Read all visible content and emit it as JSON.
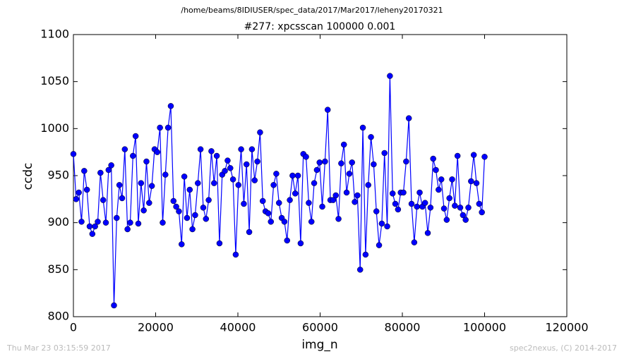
{
  "chart_data": {
    "type": "line",
    "suptitle": "/home/beams/8IDIUSER/spec_data/2017/Mar2017/leheny20170321",
    "title": "#277: xpcsscan 100000 0.001",
    "xlabel": "img_n",
    "ylabel": "ccdc",
    "footer_left": "Thu Mar 23 03:15:59 2017",
    "footer_right": "spec2nexus, (C) 2014-2017",
    "xlim": [
      0,
      120000
    ],
    "xticks": [
      0,
      20000,
      40000,
      60000,
      80000,
      100000,
      120000
    ],
    "ylim": [
      800,
      1100
    ],
    "yticks": [
      800,
      850,
      900,
      950,
      1000,
      1050,
      1100
    ],
    "grid": false,
    "series": [
      {
        "color": "#0000ff",
        "x": [
          0,
          658,
          1316,
          1974,
          2632,
          3289,
          3947,
          4605,
          5263,
          5921,
          6579,
          7237,
          7895,
          8553,
          9211,
          9868,
          10526,
          11184,
          11842,
          12500,
          13158,
          13816,
          14474,
          15132,
          15789,
          16447,
          17105,
          17763,
          18421,
          19079,
          19737,
          20395,
          21053,
          21711,
          22368,
          23026,
          23684,
          24342,
          25000,
          25658,
          26316,
          26974,
          27632,
          28289,
          28947,
          29605,
          30263,
          30921,
          31579,
          32237,
          32895,
          33553,
          34211,
          34868,
          35526,
          36184,
          36842,
          37500,
          38158,
          38816,
          39474,
          40132,
          40789,
          41447,
          42105,
          42763,
          43421,
          44079,
          44737,
          45395,
          46053,
          46711,
          47368,
          48026,
          48684,
          49342,
          50000,
          50658,
          51316,
          51974,
          52632,
          53289,
          53947,
          54605,
          55263,
          55921,
          56579,
          57237,
          57895,
          58553,
          59211,
          59868,
          60526,
          61184,
          61842,
          62500,
          63158,
          63816,
          64474,
          65132,
          65789,
          66447,
          67105,
          67763,
          68421,
          69079,
          69737,
          70395,
          71053,
          71711,
          72368,
          73026,
          73684,
          74342,
          75000,
          75658,
          76316,
          76974,
          77632,
          78289,
          78947,
          79605,
          80263,
          80921,
          81579,
          82237,
          82895,
          83553,
          84211,
          84868,
          85526,
          86184,
          86842,
          87500,
          88158,
          88816,
          89474,
          90132,
          90789,
          91447,
          92105,
          92763,
          93421,
          94079,
          94737,
          95395,
          96053,
          96711,
          97368,
          98026,
          98684,
          99342,
          100000
        ],
        "values": [
          973,
          925,
          932,
          901,
          955,
          935,
          896,
          888,
          896,
          901,
          953,
          924,
          900,
          956,
          961,
          812,
          905,
          940,
          926,
          978,
          893,
          900,
          971,
          992,
          899,
          942,
          913,
          965,
          921,
          939,
          978,
          975,
          1001,
          900,
          951,
          1001,
          1024,
          923,
          917,
          912,
          877,
          949,
          905,
          935,
          893,
          908,
          942,
          978,
          916,
          904,
          924,
          976,
          942,
          971,
          878,
          951,
          955,
          966,
          958,
          946,
          866,
          940,
          978,
          920,
          962,
          890,
          978,
          945,
          965,
          996,
          923,
          912,
          910,
          901,
          940,
          952,
          921,
          905,
          901,
          881,
          924,
          950,
          931,
          950,
          878,
          973,
          970,
          921,
          901,
          942,
          956,
          964,
          917,
          965,
          1020,
          924,
          924,
          929,
          904,
          963,
          983,
          932,
          952,
          964,
          922,
          929,
          850,
          1001,
          866,
          940,
          991,
          962,
          912,
          876,
          899,
          974,
          896,
          1056,
          931,
          920,
          914,
          932,
          932,
          965,
          1011,
          920,
          879,
          917,
          932,
          917,
          921,
          889,
          916,
          968,
          956,
          935,
          946,
          915,
          903,
          926,
          946,
          918,
          971,
          916,
          908,
          903,
          916,
          944,
          972,
          942,
          920,
          911,
          970
        ]
      }
    ]
  }
}
